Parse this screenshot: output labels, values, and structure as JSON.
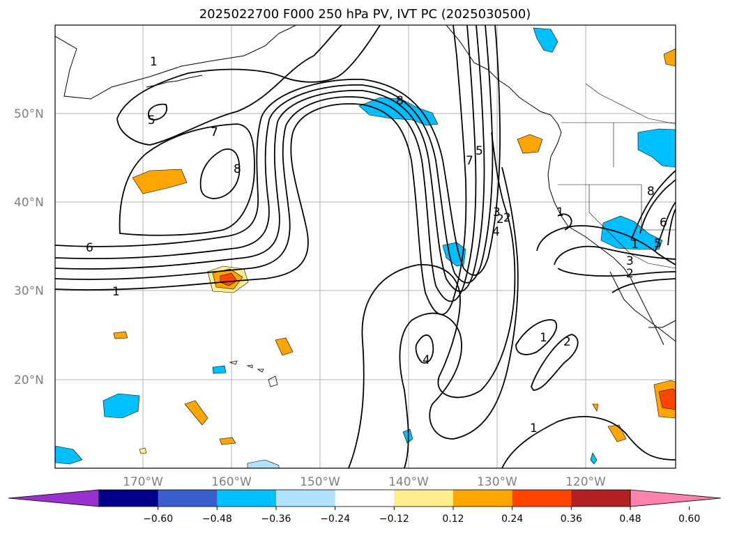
{
  "title": "2025022700 F000 250 hPa PV, IVT PC (2025030500)",
  "lat_labels": [
    "50°N",
    "40°N",
    "30°N",
    "20°N"
  ],
  "lon_labels": [
    "170°W",
    "160°W",
    "150°W",
    "140°W",
    "130°W",
    "120°W"
  ],
  "colorbar": {
    "ticks": [
      "−0.60",
      "−0.48",
      "−0.36",
      "−0.24",
      "−0.12",
      "0.12",
      "0.24",
      "0.36",
      "0.48",
      "0.60"
    ],
    "colors": [
      "#9932CC",
      "#00008B",
      "#3A5FCD",
      "#00BFFF",
      "#B0E2FF",
      "#FFFFFF",
      "#FFEC8B",
      "#FFA500",
      "#FF4500",
      "#B22222",
      "#FF82AB"
    ],
    "extend": "both"
  },
  "contour_labels": [
    "1",
    "5",
    "7",
    "8",
    "6",
    "1",
    "8",
    "5",
    "7",
    "3",
    "2",
    "4",
    "1",
    "2",
    "4",
    "1",
    "2",
    "1",
    "8",
    "6",
    "5",
    "3",
    "2",
    "1"
  ],
  "map_features": [
    "coastlines",
    "us-state-borders",
    "lat-lon-gridlines"
  ]
}
